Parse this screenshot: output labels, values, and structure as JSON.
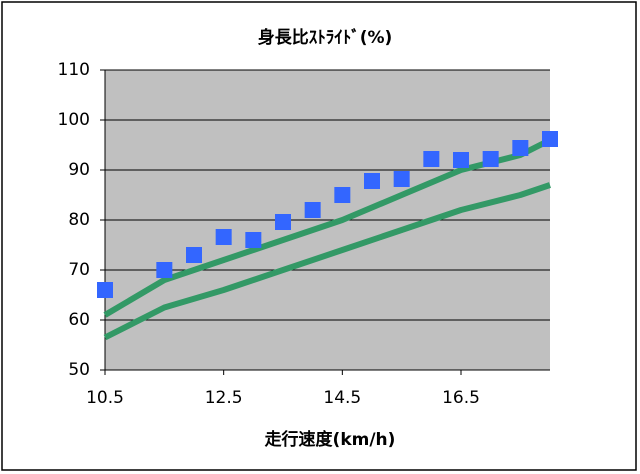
{
  "chart_data": {
    "type": "scatter",
    "title": "身長比ｽﾄﾗｲﾄﾞ(%)",
    "x_label": "走行速度(km/h)",
    "xlim": [
      10.5,
      18
    ],
    "xticks": [
      10.5,
      12.5,
      14.5,
      16.5
    ],
    "ylim": [
      50,
      110
    ],
    "yticks": [
      50,
      60,
      70,
      80,
      90,
      100,
      110
    ],
    "grid": true,
    "series": [
      {
        "type": "scatter",
        "color": "#3366ff",
        "x": [
          10.5,
          11.5,
          12,
          12.5,
          13,
          13.5,
          14,
          14.5,
          15,
          15.5,
          16,
          16.5,
          17,
          17.5,
          18
        ],
        "values": [
          66,
          70,
          73,
          76.6,
          76,
          79.6,
          82,
          85,
          87.8,
          88.2,
          92.2,
          92,
          92.2,
          94.4,
          96.2
        ]
      },
      {
        "type": "line",
        "color": "#339966",
        "x": [
          10.5,
          11.5,
          12.5,
          13.5,
          14.5,
          15.5,
          16.5,
          17.5,
          18
        ],
        "values": [
          61,
          68,
          72,
          76,
          80,
          85,
          90,
          93,
          96
        ]
      },
      {
        "type": "line",
        "color": "#339966",
        "x": [
          10.5,
          11.5,
          12.5,
          13.5,
          14.5,
          15.5,
          16.5,
          17.5,
          18
        ],
        "values": [
          56.5,
          62.5,
          66,
          70,
          74,
          78,
          82,
          85,
          87
        ]
      }
    ]
  }
}
